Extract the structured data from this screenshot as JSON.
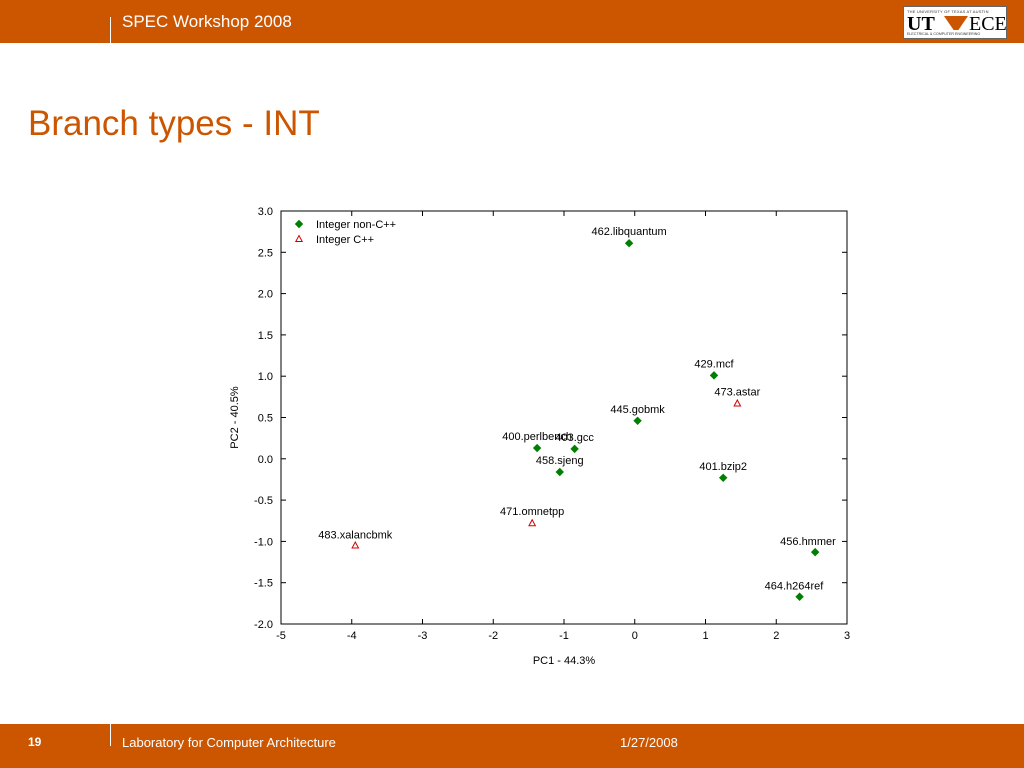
{
  "header": {
    "title": "SPEC Workshop 2008"
  },
  "logo": {
    "top_text": "THE UNIVERSITY OF TEXAS AT AUSTIN",
    "ut": "UT",
    "ece": "ECE",
    "bottom_text": "ELECTRICAL & COMPUTER ENGINEERING"
  },
  "slide": {
    "title": "Branch types - INT"
  },
  "footer": {
    "page": "19",
    "lab": "Laboratory for Computer Architecture",
    "date": "1/27/2008"
  },
  "colors": {
    "accent": "#cc5500",
    "green": "#007f00",
    "red": "#d40000"
  },
  "chart_data": {
    "type": "scatter",
    "xlabel": "PC1 - 44.3%",
    "ylabel": "PC2 - 40.5%",
    "xlim": [
      -5,
      3
    ],
    "ylim": [
      -2.0,
      3.0
    ],
    "xticks": [
      -5,
      -4,
      -3,
      -2,
      -1,
      0,
      1,
      2,
      3
    ],
    "xtick_labels": [
      "-5",
      "-4",
      "-3",
      "-2",
      "-1",
      "0",
      "1",
      "2",
      "3"
    ],
    "yticks": [
      3.0,
      2.5,
      2.0,
      1.5,
      1.0,
      0.5,
      0.0,
      -0.5,
      -1.0,
      -1.5,
      -2.0
    ],
    "ytick_labels": [
      "3.0",
      "2.5",
      "2.0",
      "1.5",
      "1.0",
      "0.5",
      "0.0",
      "-0.5",
      "-1.0",
      "-1.5",
      "-2.0"
    ],
    "grid": false,
    "legend_position": "top-left",
    "series": [
      {
        "name": "Integer non-C++",
        "marker": "diamond",
        "color": "#007f00",
        "points": [
          {
            "label": "462.libquantum",
            "x": -0.08,
            "y": 2.61
          },
          {
            "label": "429.mcf",
            "x": 1.12,
            "y": 1.01
          },
          {
            "label": "445.gobmk",
            "x": 0.04,
            "y": 0.46
          },
          {
            "label": "400.perlbench",
            "x": -1.38,
            "y": 0.13
          },
          {
            "label": "403.gcc",
            "x": -0.85,
            "y": 0.12
          },
          {
            "label": "458.sjeng",
            "x": -1.06,
            "y": -0.16
          },
          {
            "label": "401.bzip2",
            "x": 1.25,
            "y": -0.23
          },
          {
            "label": "456.hmmer",
            "x": 2.55,
            "y": -1.13
          },
          {
            "label": "464.h264ref",
            "x": 2.33,
            "y": -1.67
          }
        ]
      },
      {
        "name": "Integer C++",
        "marker": "triangle",
        "color": "#d40000",
        "points": [
          {
            "label": "473.astar",
            "x": 1.45,
            "y": 0.67
          },
          {
            "label": "471.omnetpp",
            "x": -1.45,
            "y": -0.78
          },
          {
            "label": "483.xalancbmk",
            "x": -3.95,
            "y": -1.05
          }
        ]
      }
    ]
  }
}
